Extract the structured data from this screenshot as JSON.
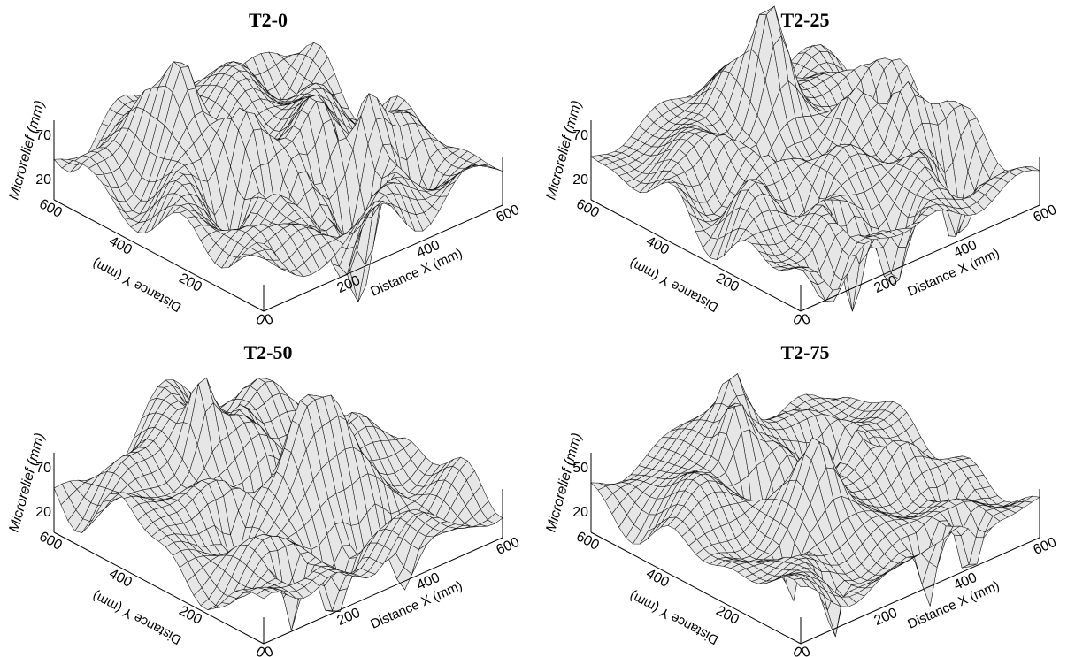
{
  "chart_data": [
    {
      "type": "surface",
      "title": "T2-0",
      "xlabel": "Distance X (mm)",
      "ylabel": "Distance Y (mm)",
      "zlabel": "Microrelief (mm)",
      "x_ticks": [
        "0",
        "200",
        "400",
        "600"
      ],
      "y_ticks": [
        "0",
        "200",
        "400",
        "600"
      ],
      "z_ticks": [
        "20",
        "70"
      ],
      "xlim": [
        0,
        600
      ],
      "ylim": [
        0,
        600
      ],
      "zlim": [
        20,
        70
      ],
      "seed": 1
    },
    {
      "type": "surface",
      "title": "T2-25",
      "xlabel": "Distance X (mm)",
      "ylabel": "Distance Y (mm)",
      "zlabel": "Microrelief (mm)",
      "x_ticks": [
        "0",
        "200",
        "400",
        "600"
      ],
      "y_ticks": [
        "0",
        "200",
        "400",
        "600"
      ],
      "z_ticks": [
        "20",
        "70"
      ],
      "xlim": [
        0,
        600
      ],
      "ylim": [
        0,
        600
      ],
      "zlim": [
        20,
        70
      ],
      "seed": 2
    },
    {
      "type": "surface",
      "title": "T2-50",
      "xlabel": "Distance X (mm)",
      "ylabel": "Distance Y (mm)",
      "zlabel": "Microrelief (mm)",
      "x_ticks": [
        "0",
        "200",
        "400",
        "600"
      ],
      "y_ticks": [
        "0",
        "200",
        "400",
        "600"
      ],
      "z_ticks": [
        "20",
        "70"
      ],
      "xlim": [
        0,
        600
      ],
      "ylim": [
        0,
        600
      ],
      "zlim": [
        20,
        70
      ],
      "seed": 3
    },
    {
      "type": "surface",
      "title": "T2-75",
      "xlabel": "Distance X (mm)",
      "ylabel": "Distance Y (mm)",
      "zlabel": "Microrelief (mm)",
      "x_ticks": [
        "0",
        "200",
        "400",
        "600"
      ],
      "y_ticks": [
        "0",
        "200",
        "400",
        "600"
      ],
      "z_ticks": [
        "20",
        "50"
      ],
      "xlim": [
        0,
        600
      ],
      "ylim": [
        0,
        600
      ],
      "zlim": [
        20,
        70
      ],
      "seed": 4
    }
  ]
}
